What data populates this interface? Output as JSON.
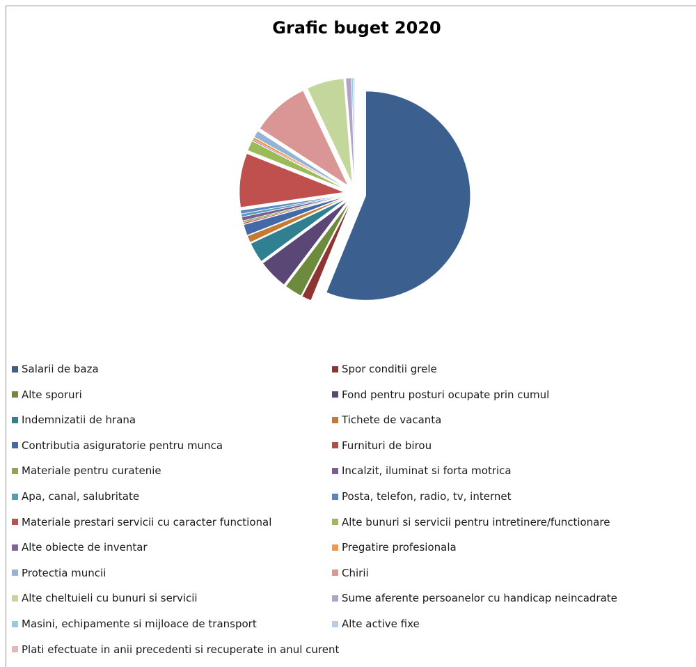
{
  "chart_data": {
    "type": "pie",
    "title": "Grafic buget 2020",
    "legend_position": "bottom",
    "slices": [
      {
        "label": "Salarii de baza",
        "value": 54.0,
        "color": "#3B5F8E"
      },
      {
        "label": "Spor conditii grele",
        "value": 1.4,
        "color": "#8E3533"
      },
      {
        "label": "Alte sporuri",
        "value": 2.6,
        "color": "#6E8B3D"
      },
      {
        "label": "Fond pentru posturi ocupate prin cumul",
        "value": 4.4,
        "color": "#5B4775"
      },
      {
        "label": "Indemnizatii de hrana",
        "value": 3.0,
        "color": "#318091"
      },
      {
        "label": "Tichete de vacanta",
        "value": 1.0,
        "color": "#C57A32"
      },
      {
        "label": "Contributia asiguratorie pentru munca",
        "value": 1.6,
        "color": "#4369A8"
      },
      {
        "label": "Furnituri de birou",
        "value": 0.2,
        "color": "#B84A48"
      },
      {
        "label": "Materiale pentru curatenie",
        "value": 0.25,
        "color": "#8DA655"
      },
      {
        "label": "Incalzit, iluminat si forta motrica",
        "value": 0.55,
        "color": "#7A5C96"
      },
      {
        "label": "Apa, canal, salubritate",
        "value": 0.4,
        "color": "#4EA2B8"
      },
      {
        "label": "Posta, telefon, radio, tv, internet",
        "value": 0.5,
        "color": "#5A86C4"
      },
      {
        "label": "Materiale prestari servicii cu caracter functional",
        "value": 8.0,
        "color": "#C0504D"
      },
      {
        "label": "Alte bunuri si servicii pentru intretinere/functionare",
        "value": 1.5,
        "color": "#9BBB59"
      },
      {
        "label": "Alte obiecte de inventar",
        "value": 0.15,
        "color": "#8064A2"
      },
      {
        "label": "Pregatire profesionala",
        "value": 0.35,
        "color": "#F79646"
      },
      {
        "label": "Protectia muncii",
        "value": 1.0,
        "color": "#95B3D7"
      },
      {
        "label": "Chirii",
        "value": 8.5,
        "color": "#D99694"
      },
      {
        "label": "Alte cheltuieli cu bunuri si servicii",
        "value": 5.5,
        "color": "#C3D69B"
      },
      {
        "label": "Sume aferente persoanelor cu handicap neincadrate",
        "value": 0.8,
        "color": "#B3A2C7"
      },
      {
        "label": "Masini, echipamente si mijloace de transport",
        "value": 0.2,
        "color": "#93CDDD"
      },
      {
        "label": "Alte active fixe",
        "value": 0.15,
        "color": "#B9CDE5"
      },
      {
        "label": "Plati efectuate in anii precedenti si recuperate in anul curent",
        "value": 0.1,
        "color": "#E6B9B8"
      }
    ]
  }
}
